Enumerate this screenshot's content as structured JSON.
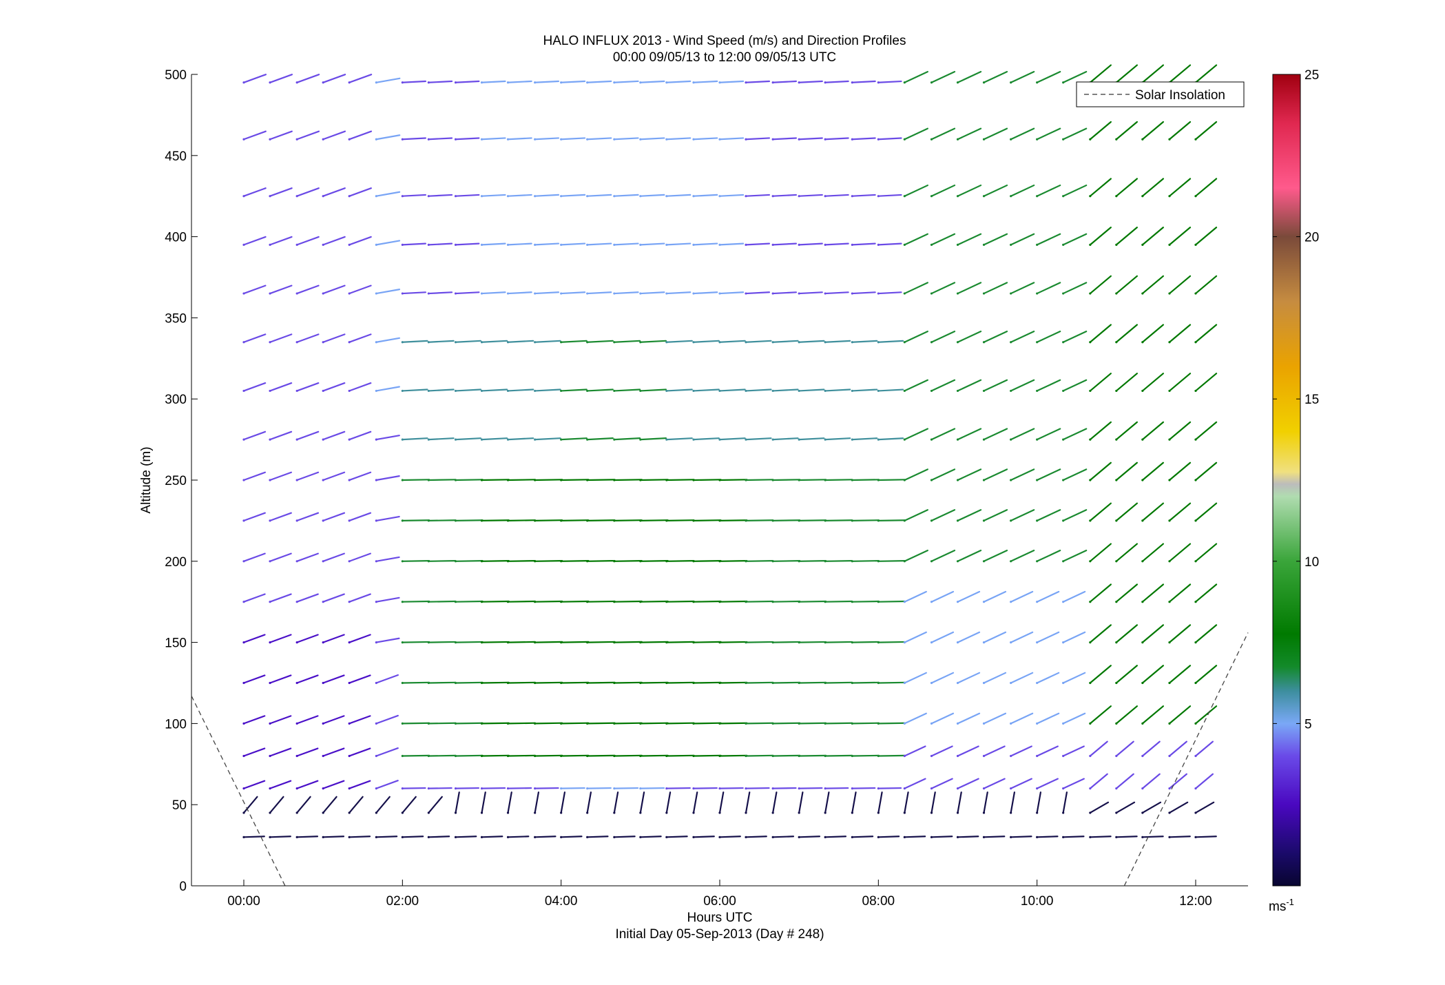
{
  "chart_data": {
    "type": "scatter",
    "subtype": "wind-barb profile",
    "title_line1": "HALO INFLUX 2013 - Wind Speed (m/s) and Direction Profiles",
    "title_line2": "00:00 09/05/13 to 12:00 09/05/13  UTC",
    "xlabel": "Hours UTC",
    "xlabel_sub": "Initial Day 05-Sep-2013 (Day # 248)",
    "ylabel": "Altitude (m)",
    "xlim_hours": [
      -0.66,
      12.66
    ],
    "ylim": [
      0,
      500
    ],
    "xticks": [
      {
        "value": 0,
        "label": "00:00"
      },
      {
        "value": 2,
        "label": "02:00"
      },
      {
        "value": 4,
        "label": "04:00"
      },
      {
        "value": 6,
        "label": "06:00"
      },
      {
        "value": 8,
        "label": "08:00"
      },
      {
        "value": 10,
        "label": "10:00"
      },
      {
        "value": 12,
        "label": "12:00"
      }
    ],
    "yticks": [
      0,
      50,
      100,
      150,
      200,
      250,
      300,
      350,
      400,
      450,
      500
    ],
    "grid": false,
    "legend": {
      "location": "top-right",
      "entries": [
        "Solar Insolation"
      ]
    },
    "colorbar": {
      "min": 0,
      "max": 25,
      "ticks": [
        5,
        10,
        15,
        20,
        25
      ],
      "unit_label": "ms",
      "unit_exponent": "-1"
    },
    "solar_insolation": [
      {
        "x": -0.66,
        "y": 117
      },
      {
        "x": 0.52,
        "y": 0
      },
      {
        "x": 11.1,
        "y": 0
      },
      {
        "x": 12.66,
        "y": 156
      }
    ],
    "barb_times_hours": [
      0.0,
      0.33,
      0.67,
      1.0,
      1.33,
      1.67,
      2.0,
      2.33,
      2.67,
      3.0,
      3.33,
      3.67,
      4.0,
      4.33,
      4.67,
      5.0,
      5.33,
      5.67,
      6.0,
      6.33,
      6.67,
      7.0,
      7.33,
      7.67,
      8.0,
      8.33,
      8.67,
      9.0,
      9.33,
      9.67,
      10.0,
      10.33,
      10.67,
      11.0,
      11.33,
      11.67,
      12.0
    ],
    "barb_altitudes": [
      30,
      45,
      60,
      80,
      100,
      125,
      150,
      175,
      200,
      225,
      250,
      275,
      305,
      335,
      365,
      395,
      425,
      460,
      495
    ],
    "wind_regime_notes": "westerly-component winds ~2-5 m/s (purple/blue) near 00-02 UTC, 6-9 m/s (green) at 100-300 m from 02-08 UTC, northwesterly 6-10 m/s at 08-12 UTC; light winds (<2 m/s, dark navy) below 50 m"
  }
}
